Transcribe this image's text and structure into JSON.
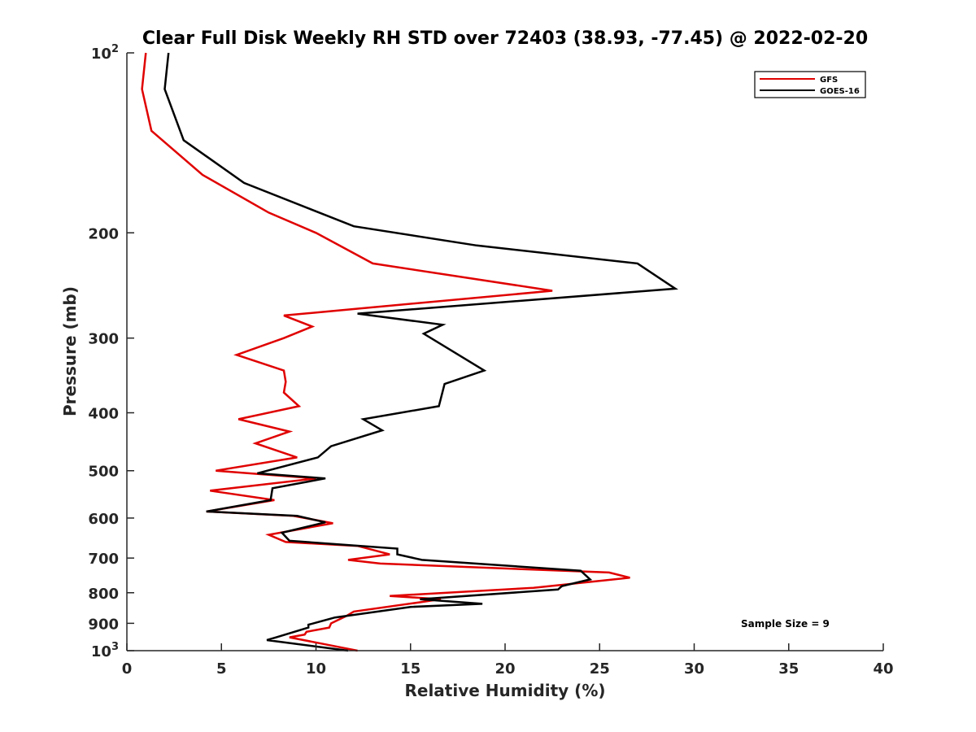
{
  "chart_data": {
    "type": "line",
    "title": "Clear Full Disk Weekly RH STD over 72403 (38.93, -77.45) @ 2022-02-20",
    "xlabel": "Relative Humidity (%)",
    "ylabel": "Pressure (mb)",
    "xlim": [
      0,
      40
    ],
    "ylim": [
      100,
      1000
    ],
    "y_scale": "log",
    "y_reversed": true,
    "grid": false,
    "legend_position": "top-right",
    "x_ticks": [
      "0",
      "5",
      "10",
      "15",
      "20",
      "25",
      "30",
      "35",
      "40"
    ],
    "y_ticks": [
      {
        "value": 100,
        "base": "10",
        "exp": "2"
      },
      {
        "value": 200,
        "label": "200"
      },
      {
        "value": 300,
        "label": "300"
      },
      {
        "value": 400,
        "label": "400"
      },
      {
        "value": 500,
        "label": "500"
      },
      {
        "value": 600,
        "label": "600"
      },
      {
        "value": 700,
        "label": "700"
      },
      {
        "value": 800,
        "label": "800"
      },
      {
        "value": 900,
        "label": "900"
      },
      {
        "value": 1000,
        "base": "10",
        "exp": "3"
      }
    ],
    "annotation": "Sample Size = 9",
    "series": [
      {
        "name": "GFS",
        "color": "#e00000",
        "points": [
          [
            1.0,
            100
          ],
          [
            0.8,
            115
          ],
          [
            1.3,
            135
          ],
          [
            4.0,
            160
          ],
          [
            7.5,
            185
          ],
          [
            10.0,
            200
          ],
          [
            13.0,
            225
          ],
          [
            22.5,
            250
          ],
          [
            8.3,
            275
          ],
          [
            9.8,
            287
          ],
          [
            8.3,
            300
          ],
          [
            5.8,
            320
          ],
          [
            8.3,
            340
          ],
          [
            8.4,
            355
          ],
          [
            8.3,
            370
          ],
          [
            9.1,
            390
          ],
          [
            5.9,
            410
          ],
          [
            8.6,
            430
          ],
          [
            6.8,
            450
          ],
          [
            9.0,
            475
          ],
          [
            4.7,
            500
          ],
          [
            10.0,
            515
          ],
          [
            4.4,
            540
          ],
          [
            7.8,
            560
          ],
          [
            4.2,
            585
          ],
          [
            8.8,
            595
          ],
          [
            10.9,
            612
          ],
          [
            7.5,
            640
          ],
          [
            8.4,
            658
          ],
          [
            12.2,
            668
          ],
          [
            13.9,
            690
          ],
          [
            11.7,
            705
          ],
          [
            13.4,
            715
          ],
          [
            25.5,
            740
          ],
          [
            26.6,
            755
          ],
          [
            21.5,
            785
          ],
          [
            13.9,
            810
          ],
          [
            16.6,
            820
          ],
          [
            15.5,
            830
          ],
          [
            12.0,
            860
          ],
          [
            11.6,
            875
          ],
          [
            10.8,
            900
          ],
          [
            10.7,
            915
          ],
          [
            9.5,
            930
          ],
          [
            9.4,
            940
          ],
          [
            8.6,
            950
          ],
          [
            11.5,
            990
          ],
          [
            12.2,
            1000
          ]
        ]
      },
      {
        "name": "GOES-16",
        "color": "#000000",
        "points": [
          [
            2.2,
            100
          ],
          [
            2.0,
            115
          ],
          [
            3.0,
            140
          ],
          [
            6.2,
            165
          ],
          [
            12.0,
            195
          ],
          [
            18.5,
            210
          ],
          [
            27.0,
            225
          ],
          [
            29.0,
            248
          ],
          [
            12.2,
            273
          ],
          [
            16.7,
            285
          ],
          [
            15.7,
            295
          ],
          [
            18.9,
            340
          ],
          [
            16.8,
            358
          ],
          [
            16.5,
            390
          ],
          [
            12.5,
            410
          ],
          [
            13.5,
            428
          ],
          [
            10.8,
            455
          ],
          [
            10.1,
            475
          ],
          [
            6.9,
            505
          ],
          [
            10.5,
            515
          ],
          [
            7.7,
            535
          ],
          [
            7.6,
            560
          ],
          [
            4.2,
            585
          ],
          [
            9.0,
            595
          ],
          [
            10.5,
            610
          ],
          [
            8.2,
            635
          ],
          [
            8.6,
            655
          ],
          [
            14.3,
            675
          ],
          [
            14.3,
            690
          ],
          [
            15.6,
            705
          ],
          [
            24.0,
            735
          ],
          [
            24.5,
            760
          ],
          [
            23.0,
            780
          ],
          [
            22.8,
            790
          ],
          [
            15.5,
            820
          ],
          [
            18.8,
            835
          ],
          [
            15.0,
            845
          ],
          [
            11.0,
            880
          ],
          [
            9.6,
            905
          ],
          [
            9.6,
            915
          ],
          [
            7.9,
            950
          ],
          [
            7.4,
            960
          ],
          [
            11.7,
            1000
          ]
        ]
      }
    ]
  }
}
